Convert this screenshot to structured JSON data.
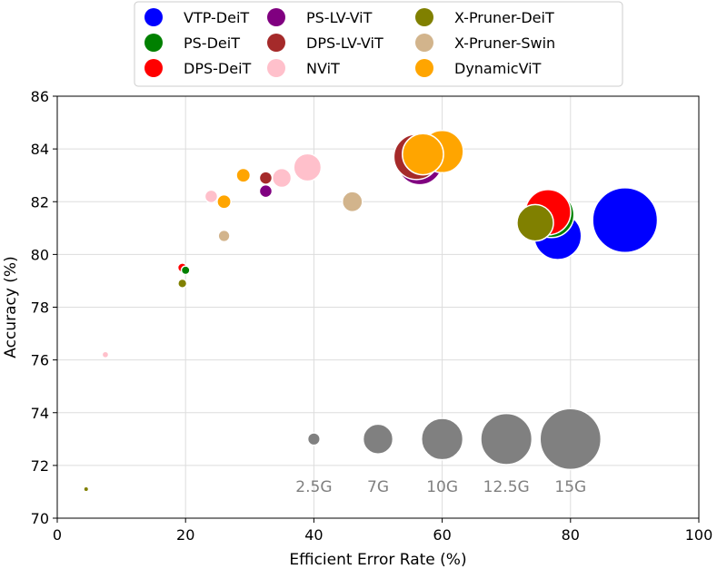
{
  "chart_data": {
    "type": "scatter",
    "xlabel": "Efficient Error Rate (%)",
    "ylabel": "Accuracy (%)",
    "xlim": [
      0,
      100
    ],
    "ylim": [
      70,
      86
    ],
    "xticks": [
      "0",
      "20",
      "40",
      "60",
      "80",
      "100"
    ],
    "yticks": [
      "70",
      "72",
      "74",
      "76",
      "78",
      "80",
      "82",
      "84",
      "86"
    ],
    "grid": true,
    "legend_position": "top-center",
    "series": [
      {
        "name": "VTP-DeiT",
        "color": "#0000ff",
        "points": [
          {
            "x": 78,
            "y": 80.7,
            "gflops": 11.5
          },
          {
            "x": 88.5,
            "y": 81.3,
            "gflops": 16
          }
        ]
      },
      {
        "name": "PS-DeiT",
        "color": "#008000",
        "points": [
          {
            "x": 20,
            "y": 79.4,
            "gflops": 1.5
          },
          {
            "x": 77,
            "y": 81.5,
            "gflops": 11
          }
        ]
      },
      {
        "name": "DPS-DeiT",
        "color": "#ff0000",
        "points": [
          {
            "x": 19.5,
            "y": 79.5,
            "gflops": 1.7
          },
          {
            "x": 76.5,
            "y": 81.6,
            "gflops": 11
          }
        ]
      },
      {
        "name": "PS-LV-ViT",
        "color": "#800080",
        "points": [
          {
            "x": 32.5,
            "y": 82.4,
            "gflops": 2.6
          },
          {
            "x": 56.5,
            "y": 83.5,
            "gflops": 11
          }
        ]
      },
      {
        "name": "DPS-LV-ViT",
        "color": "#a52a2a",
        "points": [
          {
            "x": 32.5,
            "y": 82.9,
            "gflops": 2.6
          },
          {
            "x": 56,
            "y": 83.7,
            "gflops": 11
          }
        ]
      },
      {
        "name": "NViT",
        "color": "#ffc0cb",
        "points": [
          {
            "x": 7.5,
            "y": 76.2,
            "gflops": 1
          },
          {
            "x": 24,
            "y": 82.2,
            "gflops": 2.6
          },
          {
            "x": 35,
            "y": 82.9,
            "gflops": 4.2
          },
          {
            "x": 39,
            "y": 83.3,
            "gflops": 6.4
          }
        ]
      },
      {
        "name": "X-Pruner-DeiT",
        "color": "#808000",
        "points": [
          {
            "x": 4.5,
            "y": 71.1,
            "gflops": 0.6
          },
          {
            "x": 19.5,
            "y": 78.9,
            "gflops": 1.6
          },
          {
            "x": 74.5,
            "y": 81.2,
            "gflops": 8.7
          }
        ]
      },
      {
        "name": "X-Pruner-Swin",
        "color": "#d2b48c",
        "points": [
          {
            "x": 26,
            "y": 80.7,
            "gflops": 2.3
          },
          {
            "x": 46,
            "y": 82.0,
            "gflops": 4.5
          }
        ]
      },
      {
        "name": "DynamicViT",
        "color": "#ffa500",
        "points": [
          {
            "x": 26,
            "y": 82.0,
            "gflops": 2.9
          },
          {
            "x": 29,
            "y": 83.0,
            "gflops": 2.9
          },
          {
            "x": 57,
            "y": 83.8,
            "gflops": 9.9
          },
          {
            "x": 60,
            "y": 83.9,
            "gflops": 10.2
          }
        ]
      }
    ],
    "size_legend": {
      "color": "#808080",
      "items": [
        {
          "label": "2.5G",
          "x": 40,
          "y": 73,
          "gflops": 2.5
        },
        {
          "label": "7G",
          "x": 50,
          "y": 73,
          "gflops": 7
        },
        {
          "label": "10G",
          "x": 60,
          "y": 73,
          "gflops": 10
        },
        {
          "label": "12.5G",
          "x": 70,
          "y": 73,
          "gflops": 12.5
        },
        {
          "label": "15G",
          "x": 80,
          "y": 73,
          "gflops": 15
        }
      ]
    }
  }
}
